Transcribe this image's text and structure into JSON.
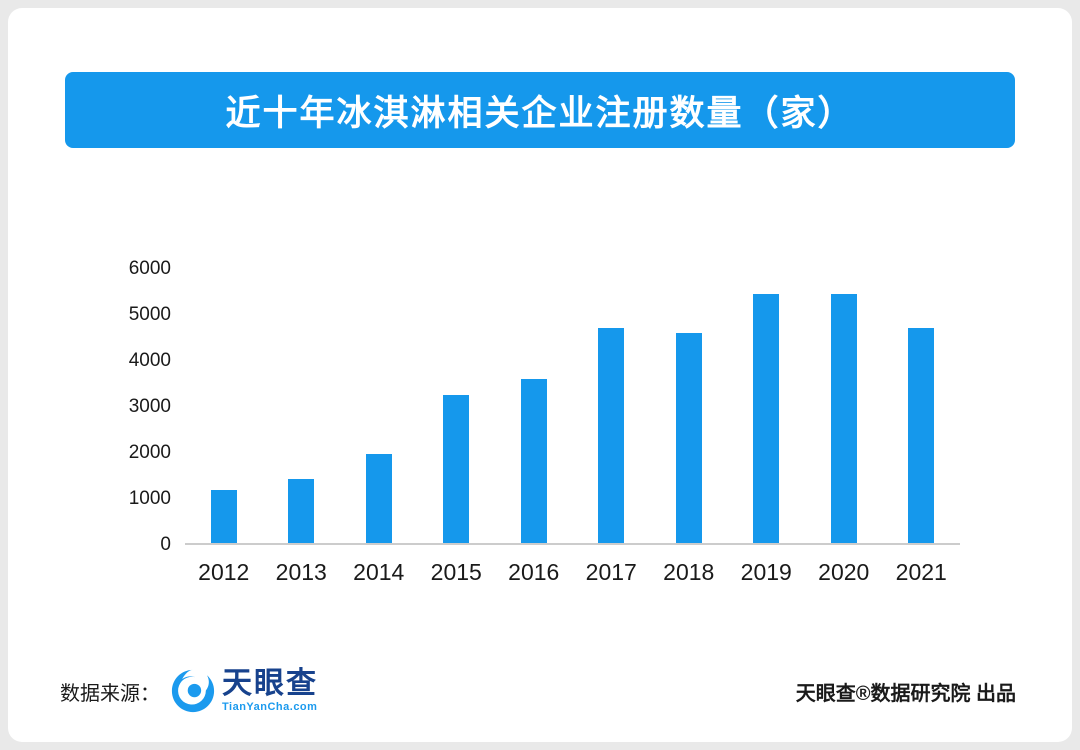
{
  "page": {
    "title": "近十年冰淇淋相关企业注册数量（家）"
  },
  "chart_data": {
    "type": "bar",
    "title": "近十年冰淇淋相关企业注册数量（家）",
    "categories": [
      "2012",
      "2013",
      "2014",
      "2015",
      "2016",
      "2017",
      "2018",
      "2019",
      "2020",
      "2021"
    ],
    "values": [
      1150,
      1400,
      1950,
      3250,
      3600,
      4700,
      4600,
      5450,
      5450,
      4700
    ],
    "xlabel": "",
    "ylabel": "",
    "ylim": [
      0,
      6000
    ],
    "yticks": [
      0,
      1000,
      2000,
      3000,
      4000,
      5000,
      6000
    ],
    "bar_color": "#1598ec",
    "grid": false,
    "legend_position": "none"
  },
  "colors": {
    "accent": "#1598ec",
    "banner": "#1598ec",
    "logo_blue": "#1b9aee",
    "logo_text": "#17428d"
  },
  "footer": {
    "source_label": "数据来源：",
    "logo_text": "天眼查",
    "logo_subtext": "TianYanCha.com",
    "credit": "天眼查®数据研究院 出品"
  }
}
